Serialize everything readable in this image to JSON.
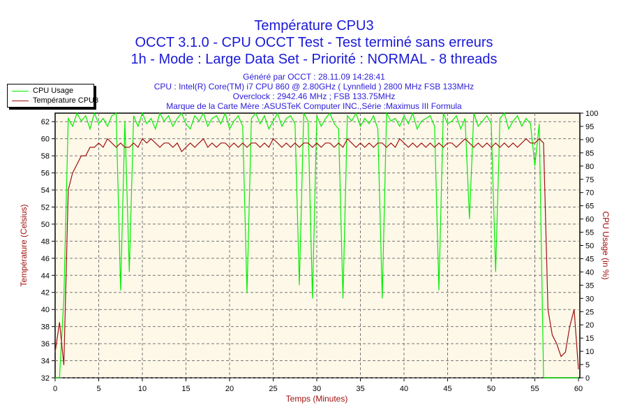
{
  "header": {
    "title": "Température CPU3",
    "line2": "OCCT 3.1.0 - CPU OCCT Test - Test terminé sans erreurs",
    "line3": "1h - Mode : Large Data Set - Priorité : NORMAL - 8 threads",
    "info": [
      "Généré par OCCT : 28.11.09 14:28:41",
      "CPU : Intel(R) Core(TM) i7 CPU 860 @ 2.80GHz ( Lynnfield ) 2800 MHz FSB 133MHz",
      "Overclock : 2942.46 MHz ; FSB 133.75MHz",
      "Marque de la Carte Mère :ASUSTeK Computer INC.,Série :Maximus III Formula"
    ]
  },
  "chart_data": {
    "type": "line",
    "xlabel": "Temps (Minutes)",
    "ylabel": "Température (Celsius)",
    "y2label": "CPU Usage (in %)",
    "xlim": [
      0,
      60
    ],
    "ylim": [
      32,
      63
    ],
    "y2lim": [
      0,
      100
    ],
    "xticks": [
      0,
      5,
      10,
      15,
      20,
      25,
      30,
      35,
      40,
      45,
      50,
      55,
      60
    ],
    "yticks": [
      32,
      34,
      36,
      38,
      40,
      42,
      44,
      46,
      48,
      50,
      52,
      54,
      56,
      58,
      60,
      62
    ],
    "y2ticks": [
      0,
      5,
      10,
      15,
      20,
      25,
      30,
      35,
      40,
      45,
      50,
      55,
      60,
      65,
      70,
      75,
      80,
      85,
      90,
      95,
      100
    ],
    "grid": true,
    "legend_position": "top-left",
    "background": "#fdf8e8",
    "x_step_minutes": 0.5,
    "series": [
      {
        "name": "CPU Usage",
        "axis": "right",
        "color": "#00ee00",
        "values": [
          0,
          0,
          30,
          98,
          95,
          100,
          97,
          99,
          94,
          100,
          96,
          98,
          95,
          99,
          100,
          33,
          97,
          40,
          99,
          95,
          100,
          96,
          98,
          94,
          100,
          97,
          99,
          95,
          98,
          100,
          96,
          94,
          99,
          97,
          100,
          95,
          98,
          99,
          96,
          100,
          94,
          97,
          99,
          95,
          32,
          98,
          100,
          96,
          99,
          94,
          97,
          100,
          95,
          98,
          99,
          96,
          35,
          100,
          97,
          30,
          99,
          95,
          98,
          100,
          96,
          94,
          30,
          99,
          97,
          100,
          95,
          98,
          96,
          99,
          94,
          30,
          100,
          97,
          98,
          95,
          99,
          96,
          100,
          94,
          97,
          98,
          99,
          95,
          33,
          100,
          96,
          97,
          99,
          94,
          98,
          60,
          100,
          95,
          97,
          99,
          96,
          40,
          98,
          100,
          94,
          97,
          99,
          95,
          98,
          96,
          80,
          96,
          0,
          0,
          0,
          0,
          0,
          0,
          0,
          0,
          0
        ]
      },
      {
        "name": "Température CPU3",
        "axis": "left",
        "color": "#a01010",
        "values": [
          35,
          38.5,
          33.5,
          54,
          56,
          57,
          58,
          58,
          59,
          59,
          59.5,
          59,
          60,
          59.5,
          59,
          59.5,
          59,
          59,
          59.5,
          59,
          60,
          59.5,
          60,
          59.5,
          59,
          59.5,
          59.5,
          59,
          59.5,
          58.5,
          59,
          59.5,
          59,
          59.5,
          60,
          59,
          59.5,
          59,
          59.5,
          59.5,
          59,
          59.5,
          59,
          59.5,
          59,
          59.5,
          59.5,
          59,
          59.5,
          59,
          60,
          59.5,
          59,
          59.5,
          59,
          59.5,
          59,
          59.5,
          59.5,
          59,
          59.5,
          59,
          59.5,
          59.5,
          59,
          59.5,
          59,
          60,
          59.5,
          59,
          59.5,
          59,
          59.5,
          59,
          59.5,
          59.5,
          59,
          59.5,
          59,
          60,
          59.5,
          59,
          59.5,
          59,
          59.5,
          59,
          59.5,
          59,
          59.5,
          59,
          59.5,
          59.5,
          59,
          59.5,
          60,
          59.5,
          59,
          59.5,
          59,
          59.5,
          59,
          59.5,
          59,
          59.5,
          59,
          59.5,
          59,
          59.5,
          60,
          59.5,
          59.5,
          60,
          59.5,
          40,
          37,
          36,
          34.5,
          35,
          38,
          40,
          33
        ]
      }
    ]
  }
}
